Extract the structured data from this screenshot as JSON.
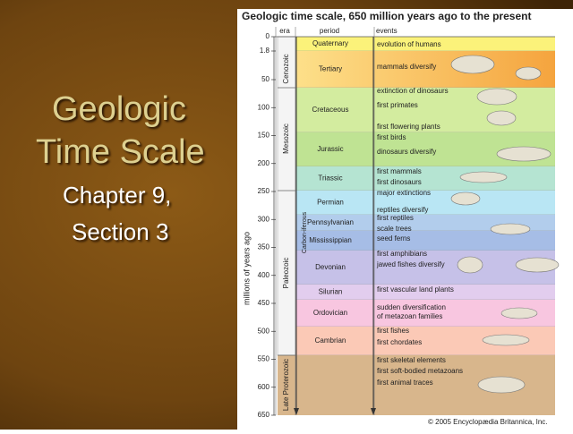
{
  "slide": {
    "title_lines": [
      "Geologic",
      "Time Scale"
    ],
    "subtitle_lines": [
      "Chapter 9,",
      "Section 3"
    ]
  },
  "figure": {
    "title": "Geologic time scale, 650 million years ago to the present",
    "axis_label": "millions of years ago",
    "ticks": [
      0,
      1.8,
      50,
      100,
      150,
      200,
      250,
      300,
      350,
      400,
      450,
      500,
      550,
      600,
      650
    ],
    "headers": [
      "era",
      "period",
      "events"
    ],
    "eras": [
      "Cenozoic",
      "Mesozoic",
      "Carbon-iferous",
      "Paleozoic",
      "Late Proterozoic"
    ],
    "periods": [
      "Quaternary",
      "Tertiary",
      "Cretaceous",
      "Jurassic",
      "Triassic",
      "Permian",
      "Pennsylvanian",
      "Mississippian",
      "Devonian",
      "Silurian",
      "Ordovician",
      "Cambrian"
    ],
    "events": [
      "evolution of humans",
      "mammals diversify",
      "extinction of dinosaurs",
      "first primates",
      "first flowering plants",
      "first birds",
      "dinosaurs diversify",
      "first mammals",
      "first dinosaurs",
      "major extinctions",
      "reptiles diversify",
      "first reptiles",
      "scale trees",
      "seed ferns",
      "first amphibians",
      "jawed fishes diversify",
      "first vascular land plants",
      "sudden diversification",
      "of metazoan families",
      "first fishes",
      "first chordates",
      "first skeletal elements",
      "first soft-bodied metazoans",
      "first animal traces"
    ],
    "credit": "© 2005 Encyclopædia Britannica, Inc."
  }
}
